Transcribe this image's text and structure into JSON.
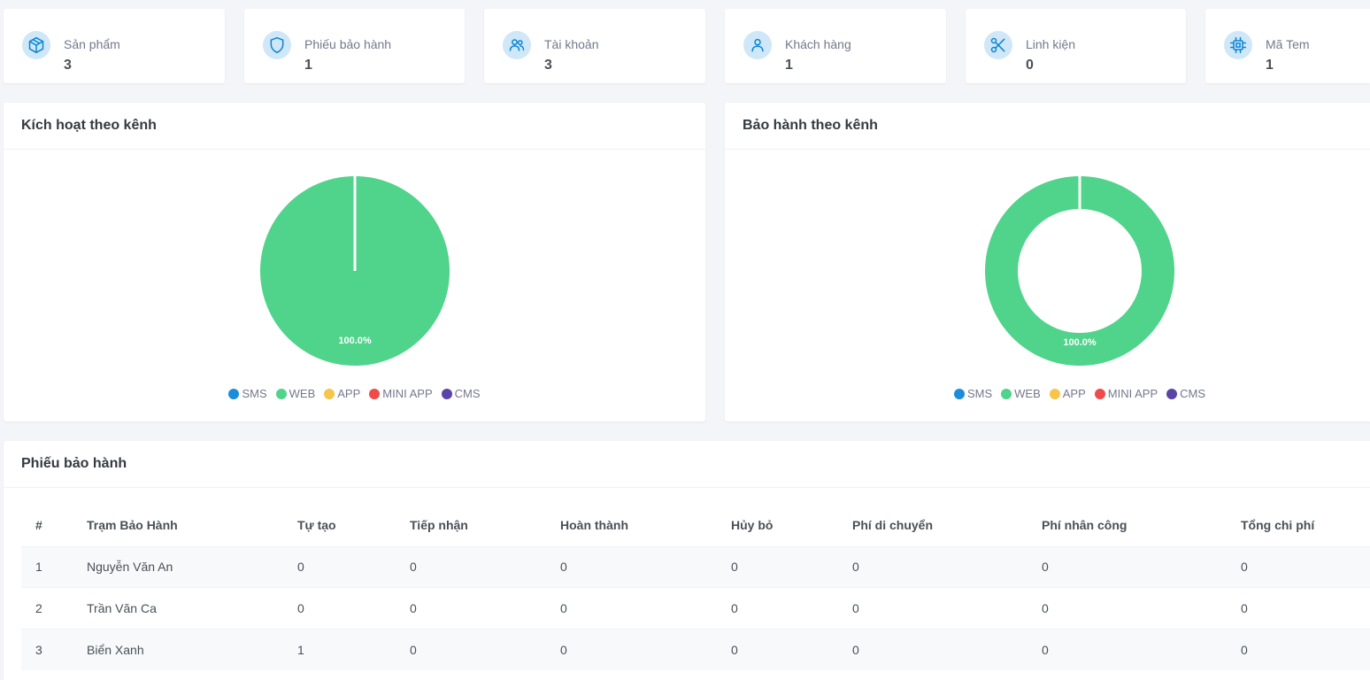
{
  "stats": [
    {
      "label": "Sản phẩm",
      "value": "3",
      "icon": "cube-icon"
    },
    {
      "label": "Phiếu bảo hành",
      "value": "1",
      "icon": "shield-icon"
    },
    {
      "label": "Tài khoản",
      "value": "3",
      "icon": "users-icon"
    },
    {
      "label": "Khách hàng",
      "value": "1",
      "icon": "user-icon"
    },
    {
      "label": "Linh kiện",
      "value": "0",
      "icon": "scissors-icon"
    },
    {
      "label": "Mã Tem",
      "value": "1",
      "icon": "chip-icon"
    }
  ],
  "colors": {
    "accent": "#0b85d6",
    "icon_bg": "#cfe7f7"
  },
  "activation_panel": {
    "title": "Kích hoạt theo kênh"
  },
  "warranty_panel": {
    "title": "Bảo hành theo kênh"
  },
  "chart_data": [
    {
      "type": "pie",
      "title": "Kích hoạt theo kênh",
      "categories": [
        "SMS",
        "WEB",
        "APP",
        "MINI APP",
        "CMS"
      ],
      "values": [
        0,
        100,
        0,
        0,
        0
      ],
      "colors": [
        "#1b8ddb",
        "#50d38a",
        "#f6c549",
        "#ef4b4b",
        "#5b43a8"
      ],
      "data_labels": [
        "",
        "100.0%",
        "",
        "",
        ""
      ],
      "legend_position": "bottom"
    },
    {
      "type": "pie",
      "subtype": "donut",
      "title": "Bảo hành theo kênh",
      "categories": [
        "SMS",
        "WEB",
        "APP",
        "MINI APP",
        "CMS"
      ],
      "values": [
        0,
        100,
        0,
        0,
        0
      ],
      "colors": [
        "#1b8ddb",
        "#50d38a",
        "#f6c549",
        "#ef4b4b",
        "#5b43a8"
      ],
      "data_labels": [
        "",
        "100.0%",
        "",
        "",
        ""
      ],
      "legend_position": "bottom"
    }
  ],
  "warranty_table": {
    "title": "Phiếu bảo hành",
    "columns": [
      "#",
      "Trạm Bảo Hành",
      "Tự tạo",
      "Tiếp nhận",
      "Hoàn thành",
      "Hủy bỏ",
      "Phí di chuyển",
      "Phí nhân công",
      "Tổng chi phí"
    ],
    "rows": [
      [
        "1",
        "Nguyễn Văn An",
        "0",
        "0",
        "0",
        "0",
        "0",
        "0",
        "0"
      ],
      [
        "2",
        "Trần Văn Ca",
        "0",
        "0",
        "0",
        "0",
        "0",
        "0",
        "0"
      ],
      [
        "3",
        "Biển Xanh",
        "1",
        "0",
        "0",
        "0",
        "0",
        "0",
        "0"
      ]
    ]
  }
}
